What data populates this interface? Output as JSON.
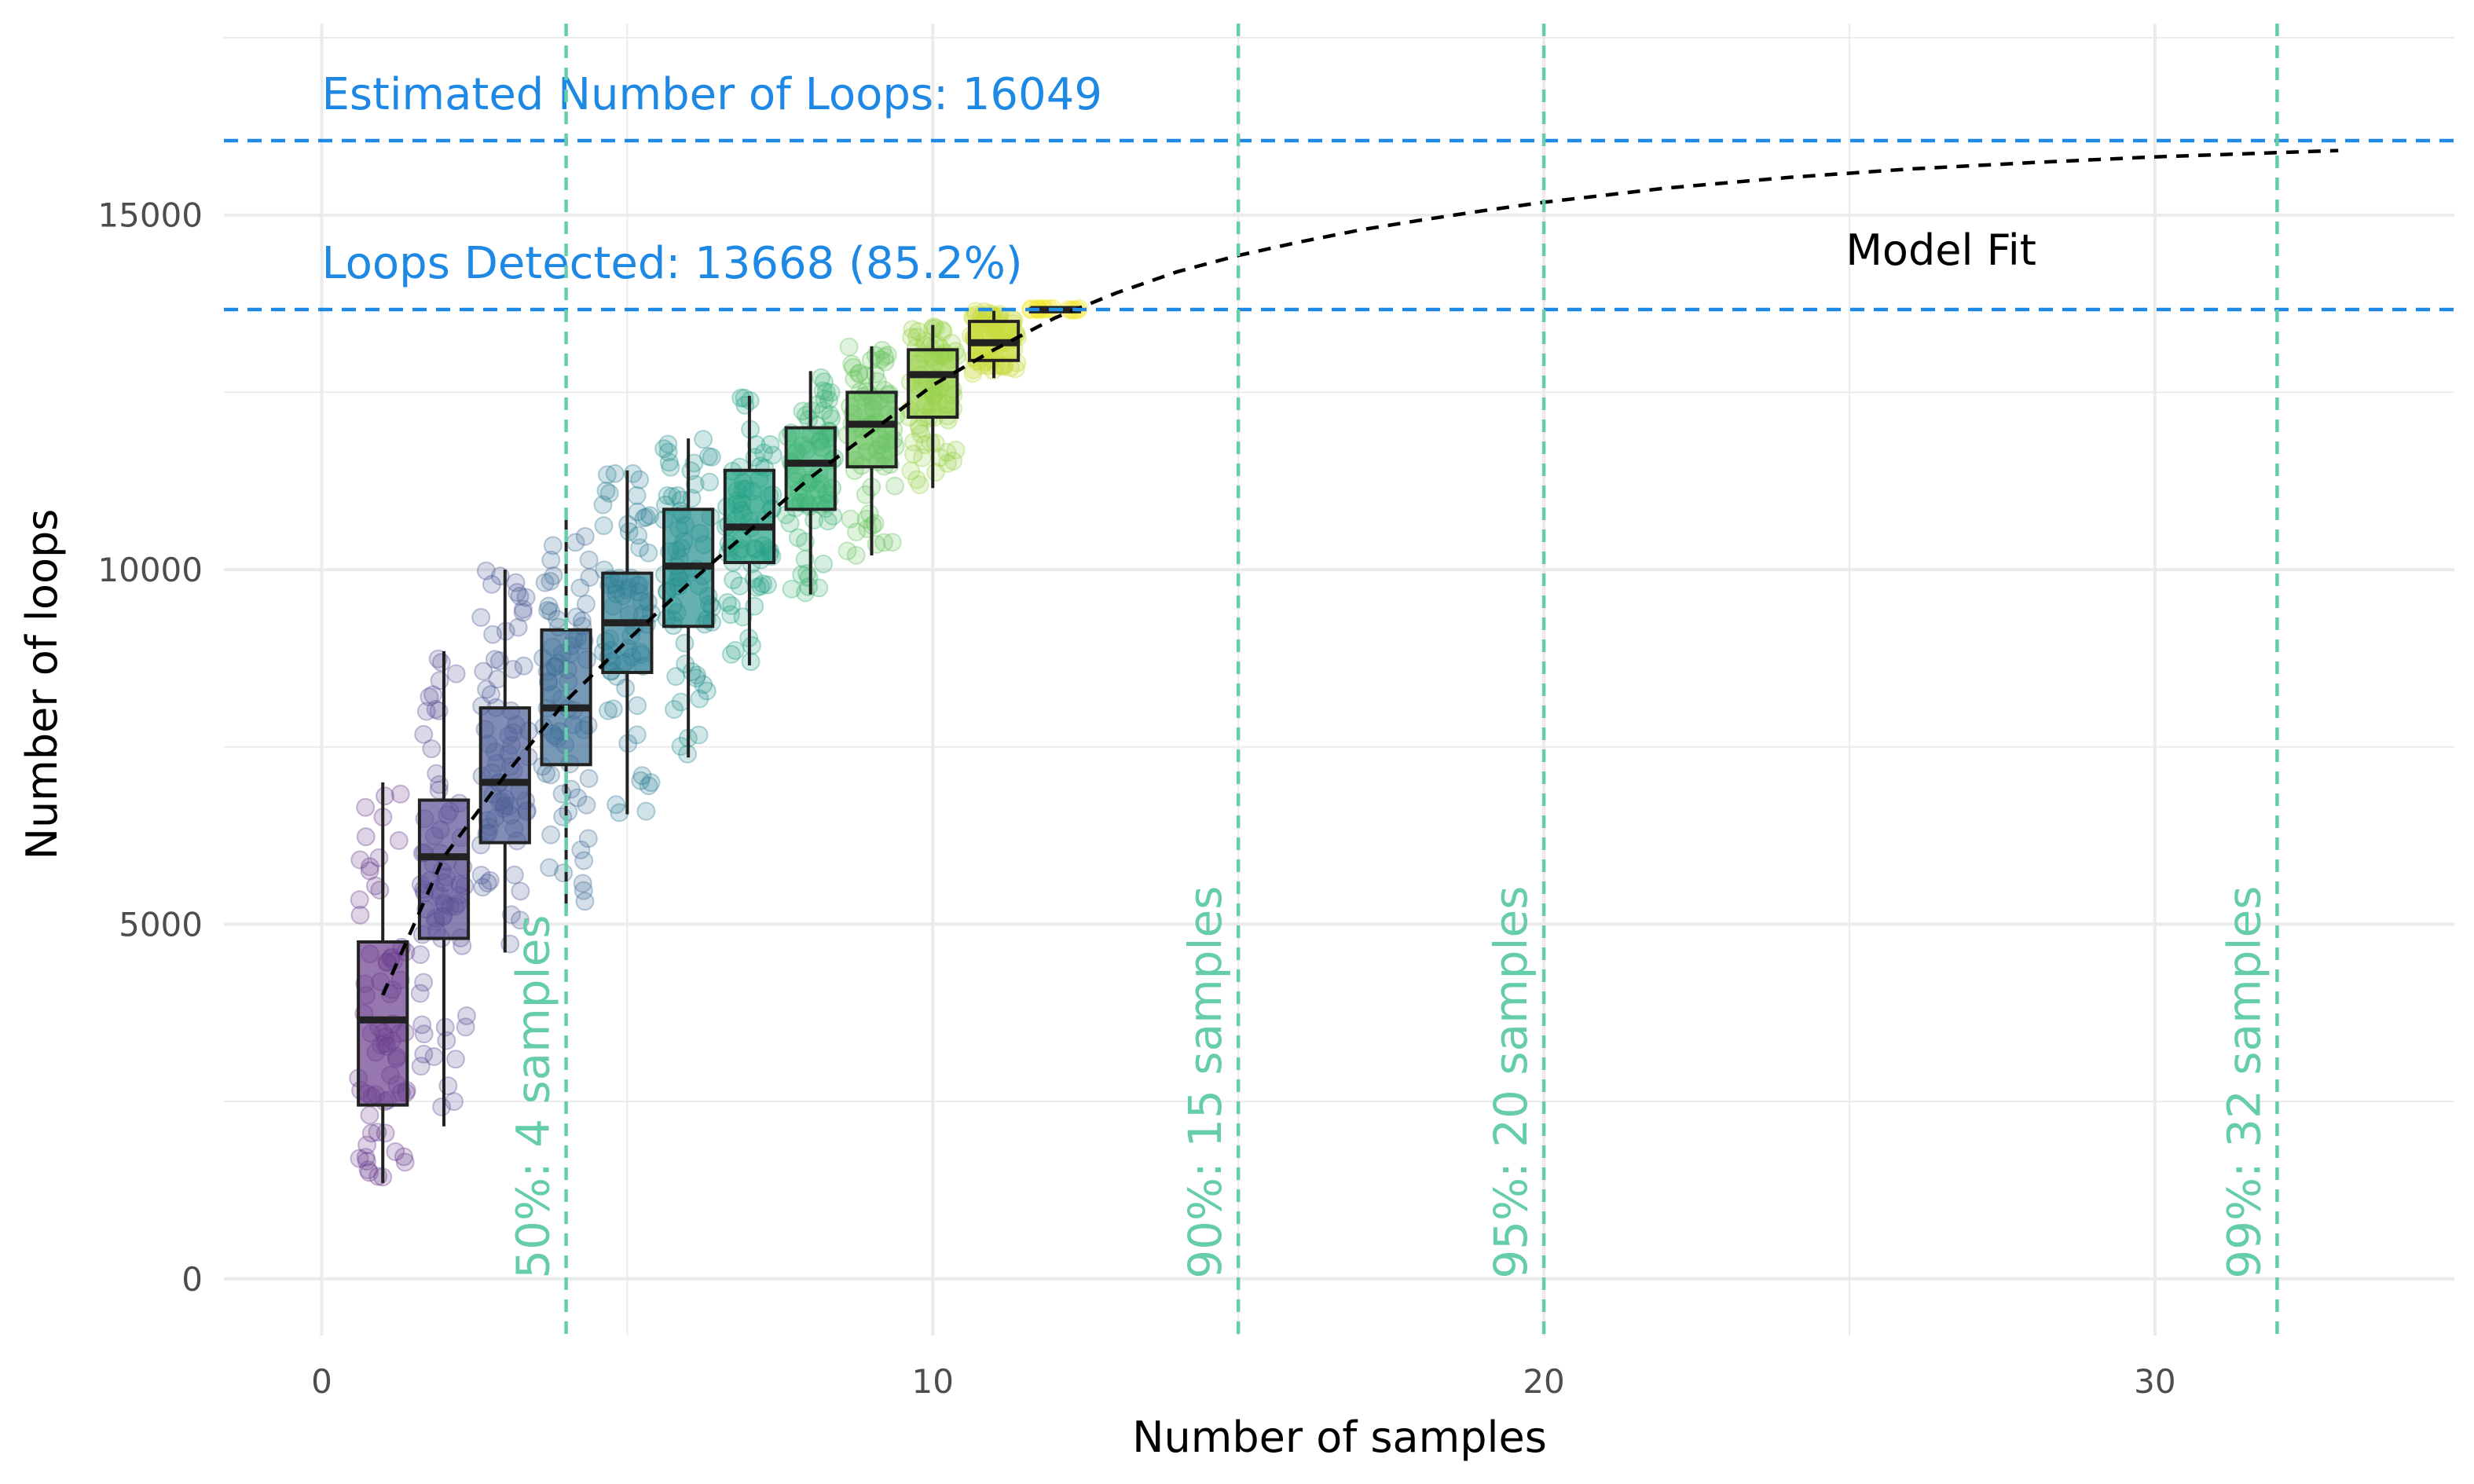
{
  "chart_data": {
    "type": "boxplot",
    "title": "",
    "xlabel": "Number of samples",
    "ylabel": "Number of loops",
    "xlim": [
      -1.6,
      34.9
    ],
    "ylim": [
      -800,
      17700
    ],
    "x_ticks": [
      0,
      10,
      20,
      30
    ],
    "y_ticks": [
      0,
      5000,
      10000,
      15000
    ],
    "grid": true,
    "boxes": [
      {
        "x": 1,
        "q1": 2450,
        "median": 3650,
        "q3": 4750,
        "whisker_low": 1350,
        "whisker_high": 7000,
        "color": "#6A3D8C"
      },
      {
        "x": 2,
        "q1": 4800,
        "median": 5950,
        "q3": 6750,
        "whisker_low": 2150,
        "whisker_high": 8850,
        "color": "#5B4E94"
      },
      {
        "x": 3,
        "q1": 6150,
        "median": 7000,
        "q3": 8050,
        "whisker_low": 4600,
        "whisker_high": 10000,
        "color": "#4D5D96"
      },
      {
        "x": 4,
        "q1": 7250,
        "median": 8050,
        "q3": 9150,
        "whisker_low": 5200,
        "whisker_high": 10700,
        "color": "#3E6E97"
      },
      {
        "x": 5,
        "q1": 8550,
        "median": 9250,
        "q3": 9950,
        "whisker_low": 6550,
        "whisker_high": 11400,
        "color": "#2F7F95"
      },
      {
        "x": 6,
        "q1": 9200,
        "median": 10050,
        "q3": 10850,
        "whisker_low": 7350,
        "whisker_high": 11850,
        "color": "#25908F"
      },
      {
        "x": 7,
        "q1": 10100,
        "median": 10600,
        "q3": 11400,
        "whisker_low": 8650,
        "whisker_high": 12450,
        "color": "#23A185"
      },
      {
        "x": 8,
        "q1": 10850,
        "median": 11500,
        "q3": 12000,
        "whisker_low": 9650,
        "whisker_high": 12800,
        "color": "#3BB274"
      },
      {
        "x": 9,
        "q1": 11450,
        "median": 12050,
        "q3": 12500,
        "whisker_low": 10200,
        "whisker_high": 13150,
        "color": "#68C25F"
      },
      {
        "x": 10,
        "q1": 12150,
        "median": 12750,
        "q3": 13100,
        "whisker_low": 11150,
        "whisker_high": 13450,
        "color": "#97D047"
      },
      {
        "x": 11,
        "q1": 12950,
        "median": 13200,
        "q3": 13500,
        "whisker_low": 12700,
        "whisker_high": 13650,
        "color": "#C8DB3A"
      },
      {
        "x": 12,
        "q1": 13660,
        "median": 13668,
        "q3": 13680,
        "whisker_low": 13660,
        "whisker_high": 13680,
        "color": "#F2E51D"
      }
    ],
    "model_fit": {
      "label": "Model Fit",
      "x": [
        1,
        2,
        3,
        4,
        5,
        6,
        7,
        8,
        9,
        10,
        11,
        12,
        13,
        14,
        15,
        16,
        17,
        18,
        19,
        20,
        22,
        24,
        26,
        28,
        30,
        32,
        33
      ],
      "y": [
        4000,
        5950,
        7100,
        8150,
        9000,
        9800,
        10550,
        11300,
        11950,
        12600,
        13100,
        13550,
        13900,
        14200,
        14430,
        14620,
        14790,
        14930,
        15060,
        15180,
        15380,
        15530,
        15650,
        15740,
        15820,
        15880,
        15910
      ]
    },
    "horizontal_lines": [
      {
        "y": 16049,
        "label": "Estimated Number of Loops: 16049",
        "color": "#1E88E5"
      },
      {
        "y": 13668,
        "label": "Loops Detected: 13668 (85.2%)",
        "color": "#1E88E5"
      }
    ],
    "vertical_lines": [
      {
        "x": 4,
        "label": "50%: 4 samples",
        "color": "#66CDAA"
      },
      {
        "x": 15,
        "label": "90%: 15 samples",
        "color": "#66CDAA"
      },
      {
        "x": 20,
        "label": "95%: 20 samples",
        "color": "#66CDAA"
      },
      {
        "x": 32,
        "label": "99%: 32 samples",
        "color": "#66CDAA"
      }
    ]
  }
}
